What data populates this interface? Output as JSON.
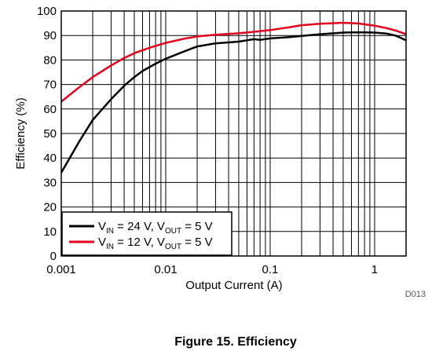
{
  "caption": "Figure 15. Efficiency",
  "figure_code": "D013",
  "colors": {
    "series_24v": "#000000",
    "series_12v": "#e4001b",
    "grid": "#000000"
  },
  "chart_data": {
    "type": "line",
    "title": "",
    "xlabel": "Output Current (A)",
    "ylabel": "Efficiency (%)",
    "xscale": "log",
    "xlim": [
      0.001,
      2
    ],
    "ylim": [
      0,
      100
    ],
    "grid": true,
    "legend_position": "bottom-left",
    "x_tick_labels": [
      "0.001",
      "0.01",
      "0.1",
      "1"
    ],
    "y_tick_labels": [
      "0",
      "10",
      "20",
      "30",
      "40",
      "50",
      "60",
      "70",
      "80",
      "90",
      "100"
    ],
    "series": [
      {
        "legend_parts": {
          "v": "V",
          "in": "IN",
          "mid": " = 24 V, V",
          "out": "OUT",
          "end": " = 5 V"
        },
        "color": "#000000",
        "x": [
          0.001,
          0.0015,
          0.002,
          0.003,
          0.004,
          0.005,
          0.006,
          0.008,
          0.01,
          0.015,
          0.02,
          0.03,
          0.05,
          0.07,
          0.08,
          0.1,
          0.15,
          0.2,
          0.3,
          0.5,
          0.7,
          1,
          1.3,
          1.6,
          2
        ],
        "y": [
          34,
          47,
          55.5,
          64,
          69.5,
          73,
          75.5,
          78.5,
          80.5,
          83.5,
          85.5,
          86.8,
          87.5,
          88.5,
          88.2,
          88.8,
          89.3,
          89.8,
          90.5,
          91.2,
          91.3,
          91.2,
          90.8,
          89.9,
          88
        ]
      },
      {
        "legend_parts": {
          "v": "V",
          "in": "IN",
          "mid": " = 12 V, V",
          "out": "OUT",
          "end": " = 5 V"
        },
        "color": "#e4001b",
        "x": [
          0.001,
          0.0015,
          0.002,
          0.003,
          0.004,
          0.005,
          0.007,
          0.01,
          0.015,
          0.02,
          0.03,
          0.05,
          0.07,
          0.1,
          0.15,
          0.2,
          0.3,
          0.5,
          0.7,
          1,
          1.3,
          1.6,
          2
        ],
        "y": [
          63,
          69,
          73,
          77.8,
          80.8,
          82.8,
          85,
          87,
          88.7,
          89.6,
          90.3,
          90.9,
          91.5,
          92.2,
          93.3,
          94.2,
          94.8,
          95.2,
          94.9,
          94,
          93,
          92,
          90.5
        ]
      }
    ]
  }
}
